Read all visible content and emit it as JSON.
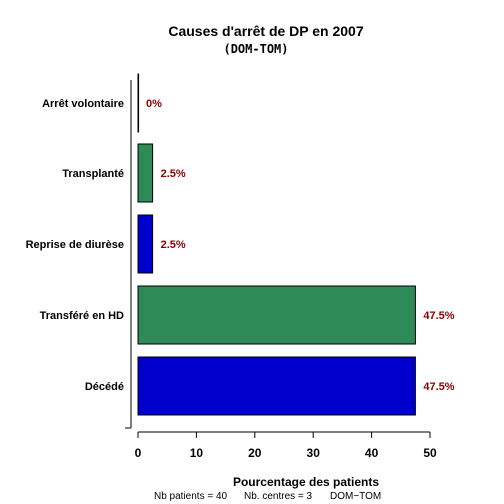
{
  "chart_data": {
    "type": "bar",
    "orientation": "horizontal",
    "title": "Causes d'arrêt de DP en 2007",
    "subtitle": "(DOM-TOM)",
    "xlabel": "Pourcentage des patients",
    "categories": [
      "Arrêt volontaire",
      "Transplanté",
      "Reprise de diurèse",
      "Transféré en HD",
      "Décédé"
    ],
    "values": [
      0,
      2.5,
      2.5,
      47.5,
      47.5
    ],
    "value_labels": [
      "0%",
      "2.5%",
      "2.5%",
      "47.5%",
      "47.5%"
    ],
    "bar_colors": [
      "#2e8b57",
      "#2e8b57",
      "#0000cd",
      "#2e8b57",
      "#0000cd"
    ],
    "value_label_color": "#8b0000",
    "xlim": [
      0,
      50
    ],
    "xticks": [
      "0",
      "10",
      "20",
      "30",
      "40",
      "50"
    ],
    "grid": false,
    "legend": "none"
  },
  "footer": {
    "patients": "Nb patients =  40",
    "centres": "Nb. centres =  3",
    "region": "DOM−TOM"
  }
}
